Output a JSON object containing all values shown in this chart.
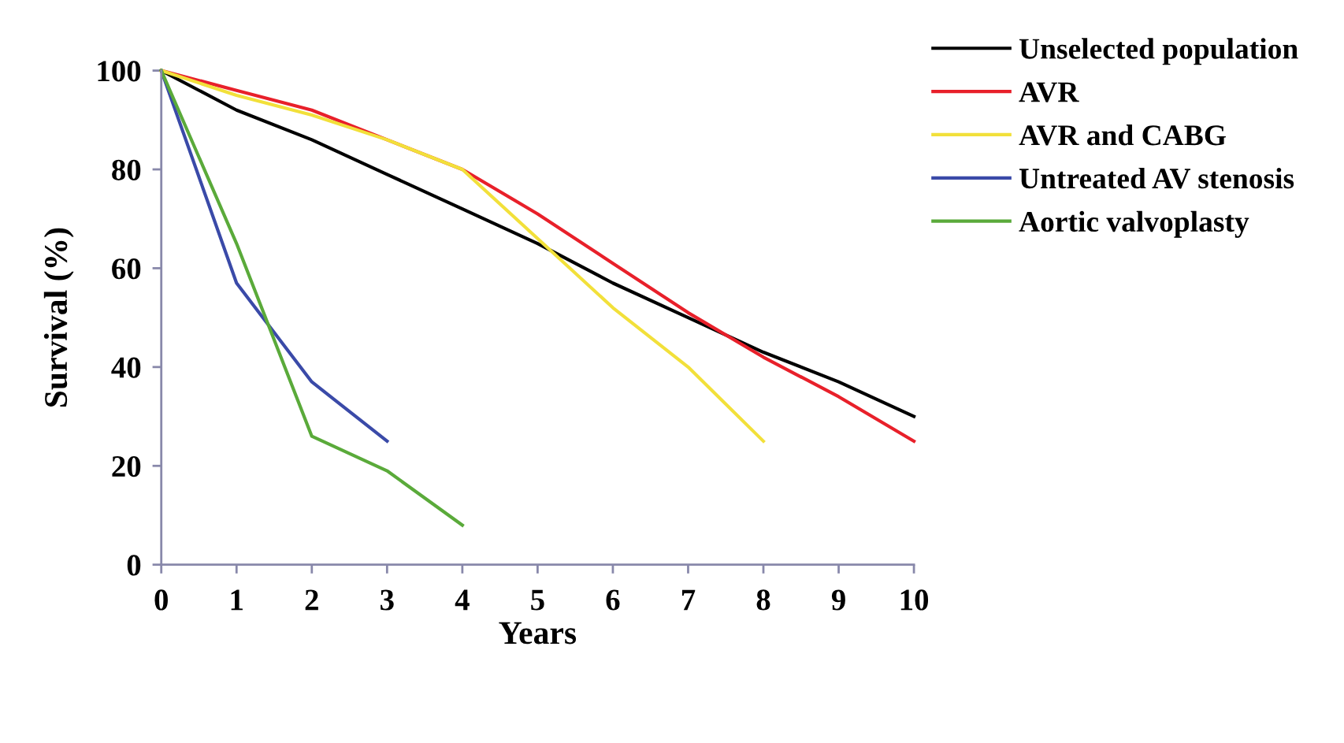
{
  "chart_data": {
    "type": "line",
    "xlabel": "Years",
    "ylabel": "Survival (%)",
    "xlim": [
      0,
      10
    ],
    "ylim": [
      0,
      100
    ],
    "xticks": [
      0,
      1,
      2,
      3,
      4,
      5,
      6,
      7,
      8,
      9,
      10
    ],
    "yticks": [
      0,
      20,
      40,
      60,
      80,
      100
    ],
    "grid": false,
    "legend": "top right",
    "marker": "none",
    "line_style": "solid",
    "series": [
      {
        "name": "Unselected population",
        "color": "#000000",
        "x": [
          0,
          1,
          2,
          3,
          4,
          5,
          6,
          7,
          8,
          9,
          10
        ],
        "values": [
          100,
          92,
          86,
          79,
          72,
          65,
          57,
          50,
          43,
          37,
          30
        ]
      },
      {
        "name": "AVR",
        "color": "#e8202a",
        "x": [
          0,
          1,
          2,
          3,
          4,
          5,
          6,
          7,
          8,
          9,
          10
        ],
        "values": [
          100,
          96,
          92,
          86,
          80,
          71,
          61,
          51,
          42,
          34,
          25
        ]
      },
      {
        "name": "AVR and CABG",
        "color": "#f2e03a",
        "x": [
          0,
          1,
          2,
          3,
          4,
          5,
          6,
          7,
          8
        ],
        "values": [
          100,
          95,
          91,
          86,
          80,
          66,
          52,
          40,
          25
        ]
      },
      {
        "name": "Untreated AV stenosis",
        "color": "#3a4aa8",
        "x": [
          0,
          1,
          2,
          3
        ],
        "values": [
          100,
          57,
          37,
          25
        ]
      },
      {
        "name": "Aortic valvoplasty",
        "color": "#5aaa3a",
        "x": [
          0,
          1,
          2,
          3,
          4
        ],
        "values": [
          100,
          65,
          26,
          19,
          8
        ]
      }
    ]
  }
}
